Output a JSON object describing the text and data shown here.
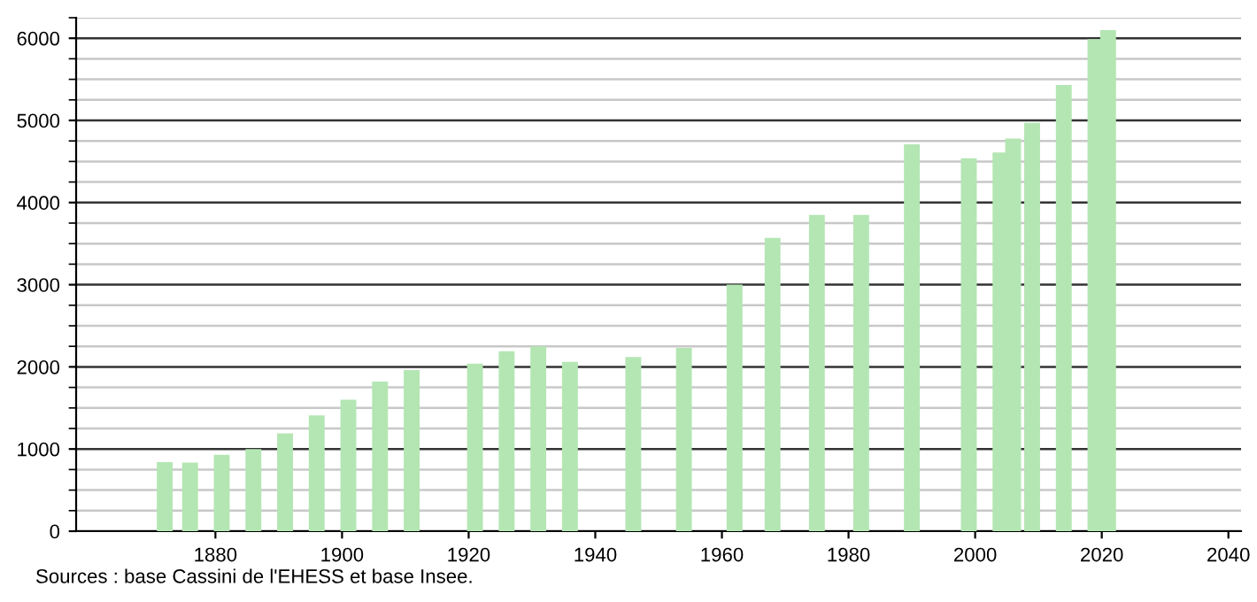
{
  "chart_data": {
    "type": "bar",
    "x": [
      1872,
      1876,
      1881,
      1886,
      1891,
      1896,
      1901,
      1906,
      1911,
      1921,
      1926,
      1931,
      1936,
      1946,
      1954,
      1962,
      1968,
      1975,
      1982,
      1990,
      1999,
      2004,
      2006,
      2009,
      2014,
      2019,
      2021
    ],
    "values": [
      840,
      835,
      930,
      1000,
      1190,
      1410,
      1600,
      1820,
      1960,
      2040,
      2190,
      2250,
      2060,
      2120,
      2230,
      3000,
      3570,
      3850,
      3850,
      4710,
      4540,
      4610,
      4780,
      4970,
      5430,
      5990,
      6100
    ],
    "color": "#b3e6b3",
    "xlim": [
      1858,
      2042
    ],
    "xticks": [
      1880,
      1900,
      1920,
      1940,
      1960,
      1980,
      2000,
      2020,
      2040
    ],
    "ylim": [
      0,
      6250
    ],
    "yticks": [
      0,
      1000,
      2000,
      3000,
      4000,
      5000,
      6000
    ],
    "grid": "y",
    "annotations": [
      "Sources : base Cassini de l'EHESS et base Insee."
    ]
  }
}
